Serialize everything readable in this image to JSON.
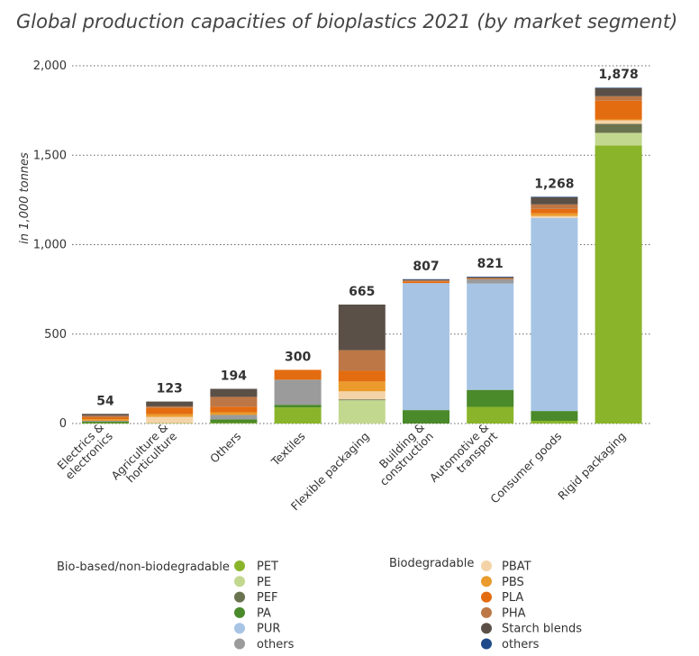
{
  "chart_data": {
    "type": "bar",
    "stacked": true,
    "title": "Global production capacities of bioplastics 2021 (by market segment)",
    "ylabel": "in 1,000 tonnes",
    "ylim": [
      0,
      2000
    ],
    "yticks": [
      0,
      500,
      1000,
      1500,
      2000
    ],
    "ytick_labels": [
      "0",
      "500",
      "1,000",
      "1,500",
      "2,000"
    ],
    "grid": "horizontal dotted",
    "categories": [
      [
        "Electrics &",
        "electronics"
      ],
      [
        "Agriculture &",
        "horticulture"
      ],
      [
        "Others"
      ],
      [
        "Textiles"
      ],
      [
        "Flexible packaging"
      ],
      [
        "Building &",
        "construction"
      ],
      [
        "Automotive &",
        "transport"
      ],
      [
        "Consumer goods"
      ],
      [
        "Rigid packaging"
      ]
    ],
    "totals": [
      54,
      123,
      194,
      300,
      665,
      807,
      821,
      1268,
      1878
    ],
    "total_labels": [
      "54",
      "123",
      "194",
      "300",
      "665",
      "807",
      "821",
      "1,268",
      "1,878"
    ],
    "series": [
      {
        "name": "PET",
        "group": "bio",
        "color": "#8ab52b",
        "values": [
          2,
          2,
          3,
          90,
          0,
          0,
          93,
          15,
          1555
        ]
      },
      {
        "name": "PE",
        "group": "bio",
        "color": "#c3d88f",
        "values": [
          0,
          0,
          0,
          0,
          130,
          0,
          0,
          0,
          70
        ]
      },
      {
        "name": "PEF",
        "group": "bio",
        "color": "#6a7350",
        "values": [
          0,
          0,
          0,
          0,
          5,
          0,
          0,
          0,
          50
        ]
      },
      {
        "name": "PA",
        "group": "bio",
        "color": "#4a8a2a",
        "values": [
          8,
          0,
          20,
          15,
          0,
          75,
          95,
          55,
          0
        ]
      },
      {
        "name": "PUR",
        "group": "bio",
        "color": "#a7c4e5",
        "values": [
          0,
          0,
          0,
          0,
          0,
          710,
          595,
          1080,
          0
        ]
      },
      {
        "name": "others",
        "group": "bio",
        "color": "#9b9b9b",
        "values": [
          5,
          0,
          25,
          140,
          0,
          0,
          25,
          0,
          0
        ]
      },
      {
        "name": "PBAT",
        "group": "bd",
        "color": "#f4d3a9",
        "values": [
          0,
          35,
          0,
          0,
          45,
          0,
          0,
          10,
          20
        ]
      },
      {
        "name": "PBS",
        "group": "bd",
        "color": "#ea9b2c",
        "values": [
          10,
          15,
          15,
          0,
          55,
          0,
          0,
          15,
          5
        ]
      },
      {
        "name": "PLA",
        "group": "bd",
        "color": "#e46c10",
        "values": [
          10,
          35,
          31,
          55,
          60,
          10,
          5,
          25,
          105
        ]
      },
      {
        "name": "PHA",
        "group": "bd",
        "color": "#bd7746",
        "values": [
          9,
          9,
          55,
          0,
          115,
          5,
          0,
          25,
          25
        ]
      },
      {
        "name": "Starch blends",
        "group": "bd",
        "color": "#5b5048",
        "values": [
          10,
          27,
          45,
          0,
          255,
          5,
          5,
          40,
          45
        ]
      },
      {
        "name": "others",
        "group": "bd",
        "color": "#1f4a8a",
        "values": [
          0,
          0,
          0,
          0,
          0,
          2,
          3,
          3,
          3
        ]
      }
    ],
    "legend": {
      "placement": "bottom",
      "group_titles": {
        "bio": "Bio-based/non-biodegradable",
        "bd": "Biodegradable"
      }
    }
  }
}
